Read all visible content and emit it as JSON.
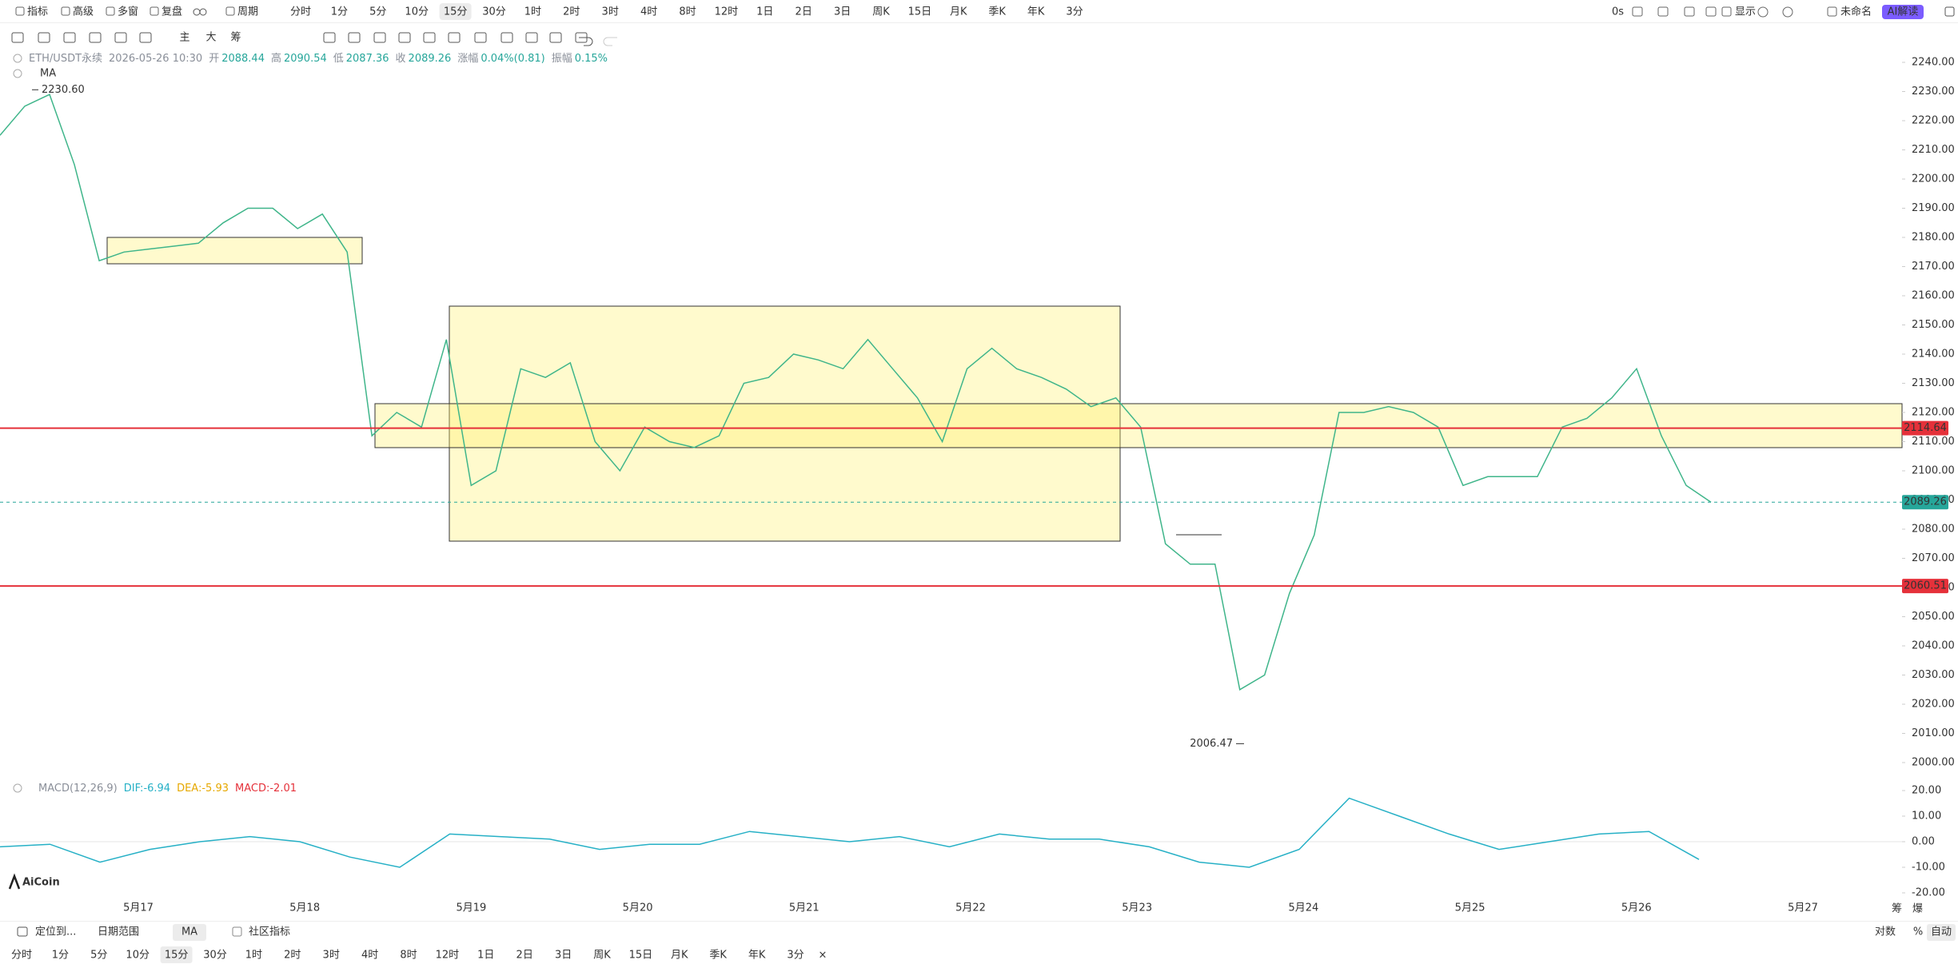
{
  "toolbar": {
    "left": [
      "指标",
      "高级",
      "多窗",
      "复盘",
      "周期"
    ],
    "periods": [
      "分时",
      "1分",
      "5分",
      "10分",
      "15分",
      "30分",
      "1时",
      "2时",
      "3时",
      "4时",
      "8时",
      "12时",
      "1日",
      "2日",
      "3日",
      "周K",
      "15日",
      "月K",
      "季K",
      "年K",
      "3分"
    ],
    "right": [
      "0s",
      "显示",
      "未命名"
    ],
    "ai": "AI解读"
  },
  "drawing_tools": [
    "主",
    "大",
    "筹"
  ],
  "chart_data": [
    {
      "type": "line",
      "symbol": "ETH/USDT永续",
      "datetime": "2026-05-26 10:30",
      "stats": [
        {
          "label": "开",
          "value": 2088.44
        },
        {
          "label": "高",
          "value": 2090.54
        },
        {
          "label": "低",
          "value": 2087.36
        },
        {
          "label": "收",
          "value": 2089.26
        },
        {
          "label": "涨幅",
          "value": "0.04%(0.81)"
        },
        {
          "label": "振幅",
          "value": "0.15%"
        }
      ],
      "indicator": "MA",
      "color": "#3fb58a",
      "values": [
        2215,
        2225,
        2229,
        2205,
        2172,
        2175,
        2176,
        2177,
        2178,
        2185,
        2190,
        2190,
        2183,
        2188,
        2175,
        2112,
        2120,
        2115,
        2145,
        2095,
        2100,
        2135,
        2132,
        2137,
        2110,
        2100,
        2115,
        2110,
        2108,
        2112,
        2130,
        2132,
        2140,
        2138,
        2135,
        2145,
        2135,
        2125,
        2110,
        2135,
        2142,
        2135,
        2132,
        2128,
        2122,
        2125,
        2115,
        2075,
        2068,
        2068,
        2025,
        2030,
        2058,
        2078,
        2120,
        2120,
        2122,
        2120,
        2115,
        2095,
        2098,
        2098,
        2098,
        2115,
        2118,
        2125,
        2135,
        2112,
        2095,
        2089.26
      ],
      "date_labels": [
        "5月17",
        "5月18",
        "5月19",
        "5月20",
        "5月21",
        "5月22",
        "5月23",
        "5月24",
        "5月25",
        "5月26",
        "5月27"
      ],
      "ylim": [
        2000,
        2240
      ],
      "yticks": [
        {
          "value": 2000,
          "label": "2000.00"
        },
        {
          "value": 2010,
          "label": "2010.00"
        },
        {
          "value": 2020,
          "label": "2020.00"
        },
        {
          "value": 2030,
          "label": "2030.00"
        },
        {
          "value": 2040,
          "label": "2040.00"
        },
        {
          "value": 2050,
          "label": "2050.00"
        },
        {
          "value": 2060,
          "label": "2060.00"
        },
        {
          "value": 2070,
          "label": "2070.00"
        },
        {
          "value": 2080,
          "label": "2080.00"
        },
        {
          "value": 2090,
          "label": "2090.00"
        },
        {
          "value": 2100,
          "label": "2100.00"
        },
        {
          "value": 2110,
          "label": "2110.00"
        },
        {
          "value": 2120,
          "label": "2120.00"
        },
        {
          "value": 2130,
          "label": "2130.00"
        },
        {
          "value": 2140,
          "label": "2140.00"
        },
        {
          "value": 2150,
          "label": "2150.00"
        },
        {
          "value": 2160,
          "label": "2160.00"
        },
        {
          "value": 2170,
          "label": "2170.00"
        },
        {
          "value": 2180,
          "label": "2180.00"
        },
        {
          "value": 2190,
          "label": "2190.00"
        },
        {
          "value": 2200,
          "label": "2200.00"
        },
        {
          "value": 2210,
          "label": "2210.00"
        },
        {
          "value": 2220,
          "label": "2220.00"
        },
        {
          "value": 2230,
          "label": "2230.00"
        },
        {
          "value": 2240,
          "label": "2240.00"
        }
      ],
      "price_lines": [
        {
          "value": 2114.64,
          "color": "#e5313a"
        },
        {
          "value": 2060.51,
          "color": "#e5313a"
        },
        {
          "value": 2089.26,
          "color": "#26a69a",
          "style": "dashed"
        }
      ],
      "high_marker": {
        "value": 2230.6,
        "label": "2230.60"
      },
      "low_marker": 2006.47
    },
    {
      "type": "macd",
      "indicator": "MACD(12,26,9)",
      "stats": [
        {
          "label": "DIF:",
          "value": -6.94,
          "color": "#26b0c6"
        },
        {
          "label": "DEA:",
          "value": -5.93,
          "color": "#e6a800"
        },
        {
          "label": "MACD:",
          "value": -2.01,
          "color": "#e5313a"
        }
      ],
      "color": "#26b0c6",
      "values": [
        -2,
        -1,
        -8,
        -3,
        0,
        2,
        0,
        -6,
        -10,
        3,
        2,
        1,
        -3,
        -1,
        -1,
        4,
        2,
        0,
        2,
        -2,
        3,
        1,
        1,
        -2,
        -8,
        -10,
        -3,
        17,
        10,
        3,
        -3,
        0,
        3,
        4,
        -6.94
      ],
      "ylim": [
        -20,
        20
      ],
      "yticks": [
        {
          "value": 20,
          "label": "20.00"
        },
        {
          "value": 10,
          "label": "10.00"
        },
        {
          "value": 0,
          "label": "0.00"
        },
        {
          "value": -10,
          "label": "-10.00"
        },
        {
          "value": -20,
          "label": "-20.00"
        }
      ]
    }
  ],
  "logo": "AiCoin",
  "side_labels": [
    "筹",
    "爆"
  ],
  "bottom_bar": {
    "left": [
      "定位到...",
      "日期范围",
      "MA",
      "社区指标"
    ],
    "right": [
      "对数",
      "%",
      "自动"
    ]
  },
  "period_bar": [
    "分时",
    "1分",
    "5分",
    "10分",
    "15分",
    "30分",
    "1时",
    "2时",
    "3时",
    "4时",
    "8时",
    "12时",
    "1日",
    "2日",
    "3日",
    "周K",
    "15日",
    "月K",
    "季K",
    "年K",
    "3分"
  ],
  "close": "×"
}
